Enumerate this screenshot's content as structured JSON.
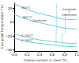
{
  "chart_data": {
    "type": "line",
    "xlabel": "Carbon content in steel (%)",
    "ylabel": "Dew point temperature (°C)",
    "xlim": [
      0.0,
      1.0
    ],
    "ylim": [
      -42,
      28
    ],
    "xticks": [
      {
        "value": 0.0,
        "label": "0.0"
      },
      0.2,
      0.4,
      0.6,
      0.8,
      {
        "value": 1.0,
        "label": "1.0"
      }
    ],
    "yticks": [
      {
        "value": -40,
        "label": "−40"
      },
      {
        "value": -20,
        "label": "−20"
      },
      0,
      20
    ],
    "series": [
      {
        "color": "#5bc8d8",
        "line_style": "solid",
        "x": [
          0.0,
          0.1,
          0.2,
          0.3,
          0.4,
          0.5,
          0.6,
          0.65,
          0.68,
          0.72,
          0.75,
          0.78,
          0.85,
          1.0
        ],
        "values": [
          26,
          22,
          18,
          15,
          12,
          10,
          8,
          7,
          6,
          5,
          4.5,
          4,
          3.5,
          3
        ]
      },
      {
        "color": "#5bc8d8",
        "line_style": "solid",
        "x": [
          0.0,
          0.1,
          0.2,
          0.3,
          0.4,
          0.5,
          0.6,
          0.65,
          0.7,
          0.75,
          0.78,
          0.82,
          0.88,
          0.92,
          1.0
        ],
        "values": [
          11,
          7,
          4,
          1,
          -1,
          -3,
          -5,
          -6,
          -7,
          -8,
          -8.5,
          -9,
          -9.5,
          -10,
          -10.5
        ]
      },
      {
        "color": "#5bc8d8",
        "line_style": "solid",
        "x": [
          0.0,
          0.1,
          0.2,
          0.3,
          0.4,
          0.5,
          0.6,
          0.65,
          0.7,
          0.75,
          0.77,
          0.8,
          0.85,
          0.9,
          1.0
        ],
        "values": [
          -17,
          -20,
          -22,
          -24,
          -26,
          -27,
          -28,
          -28.5,
          -29,
          -29.5,
          -30,
          -30.3,
          -30.7,
          -31,
          -31.5
        ]
      },
      {
        "color": "#5bc8d8",
        "line_style": "solid",
        "x": [
          0.0,
          0.1,
          0.2,
          0.3,
          0.4,
          0.5,
          0.6,
          0.65,
          0.67,
          0.7,
          0.72,
          0.75,
          0.8,
          0.9,
          1.0
        ],
        "values": [
          -24,
          -26,
          -28,
          -30,
          -31,
          -32,
          -33,
          -33.5,
          -34,
          -34.3,
          -34.5,
          -34.8,
          -35.2,
          -35.7,
          -36
        ]
      },
      {
        "color": "#5bc8d8",
        "line_style": "dashed",
        "x": [
          0.68,
          0.68
        ],
        "values": [
          26,
          -16
        ]
      },
      {
        "color": "#5bc8d8",
        "line_style": "dashed",
        "x": [
          0.82,
          0.82
        ],
        "values": [
          11,
          -16
        ]
      },
      {
        "color": "#5bc8d8",
        "line_style": "dashed",
        "x": [
          0.77,
          0.77
        ],
        "values": [
          -17,
          -34
        ]
      },
      {
        "color": "#5bc8d8",
        "line_style": "dashed",
        "x": [
          0.67,
          0.67
        ],
        "values": [
          -17,
          -34
        ]
      }
    ],
    "annotations": [
      {
        "text": "850°C",
        "x": 0.12,
        "y": 20
      },
      {
        "text": "800°C",
        "x": 0.14,
        "y": 7
      },
      {
        "text": "F 750°C",
        "x": 0.12,
        "y": -20
      },
      {
        "text": "F 700°C",
        "x": 0.12,
        "y": -27
      },
      {
        "text": "Austenite",
        "x": 0.4,
        "y": 2
      },
      {
        "text": "Austenite\n+\nCementite",
        "x": 0.88,
        "y": 14
      }
    ]
  }
}
